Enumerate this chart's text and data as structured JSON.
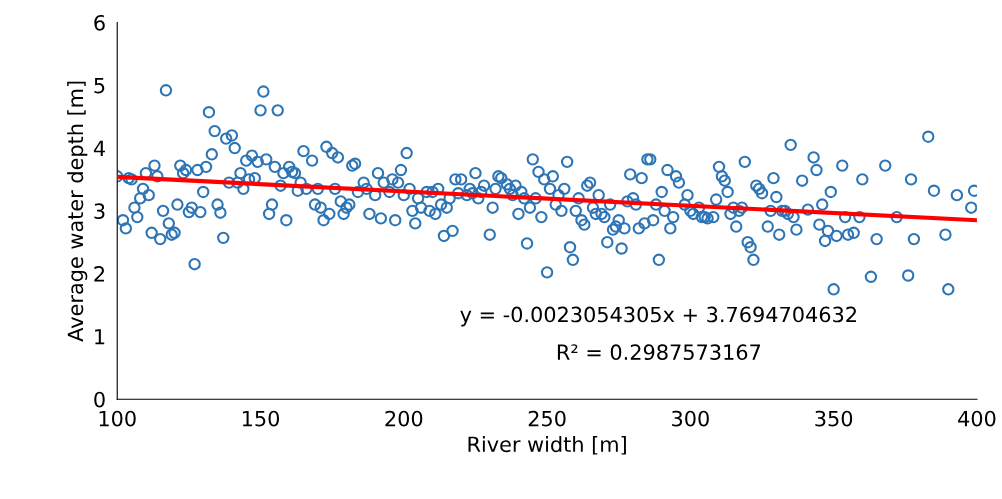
{
  "chart_data": {
    "type": "scatter",
    "xlabel": "River width [m]",
    "ylabel": "Average water depth [m]",
    "xlim": [
      100,
      400
    ],
    "ylim": [
      0,
      6
    ],
    "xticks": [
      100,
      150,
      200,
      250,
      300,
      350,
      400
    ],
    "yticks": [
      0,
      1,
      2,
      3,
      4,
      5,
      6
    ],
    "grid": false,
    "legend": false,
    "annotations": [
      "y = -0.0023054305x + 3.7694704632",
      "R² = 0.2987573167"
    ],
    "series": [
      {
        "marker": "circle",
        "color": "#2e75b6",
        "x": [
          100,
          102,
          103,
          104,
          105,
          106,
          107,
          108,
          109,
          110,
          111,
          112,
          113,
          114,
          115,
          116,
          117,
          118,
          119,
          120,
          121,
          122,
          123,
          124,
          125,
          126,
          127,
          128,
          129,
          130,
          131,
          132,
          133,
          134,
          135,
          136,
          137,
          138,
          139,
          140,
          141,
          142,
          143,
          144,
          145,
          146,
          147,
          148,
          149,
          150,
          151,
          152,
          153,
          154,
          155,
          156,
          157,
          158,
          159,
          160,
          161,
          162,
          163,
          164,
          165,
          166,
          168,
          169,
          170,
          171,
          172,
          173,
          174,
          175,
          176,
          177,
          178,
          179,
          180,
          181,
          182,
          183,
          184,
          186,
          187,
          188,
          190,
          191,
          192,
          193,
          195,
          196,
          197,
          198,
          199,
          200,
          201,
          202,
          203,
          204,
          205,
          206,
          208,
          209,
          210,
          211,
          212,
          213,
          214,
          215,
          216,
          217,
          218,
          219,
          220,
          222,
          223,
          224,
          225,
          226,
          227,
          228,
          230,
          231,
          232,
          233,
          234,
          236,
          237,
          238,
          239,
          240,
          241,
          242,
          243,
          244,
          245,
          246,
          247,
          248,
          249,
          250,
          251,
          252,
          253,
          254,
          255,
          256,
          257,
          258,
          259,
          260,
          261,
          262,
          263,
          264,
          265,
          266,
          267,
          268,
          269,
          270,
          271,
          272,
          273,
          274,
          275,
          276,
          277,
          278,
          279,
          280,
          281,
          282,
          283,
          284,
          285,
          286,
          287,
          288,
          289,
          290,
          291,
          292,
          293,
          294,
          295,
          296,
          298,
          299,
          300,
          301,
          303,
          304,
          305,
          306,
          308,
          309,
          310,
          311,
          312,
          313,
          314,
          315,
          316,
          317,
          318,
          319,
          320,
          321,
          322,
          323,
          324,
          325,
          327,
          328,
          329,
          330,
          331,
          332,
          333,
          334,
          335,
          336,
          337,
          339,
          341,
          343,
          344,
          345,
          346,
          347,
          348,
          349,
          350,
          351,
          353,
          354,
          355,
          357,
          359,
          360,
          363,
          365,
          368,
          372,
          376,
          377,
          378,
          383,
          385,
          389,
          390,
          393,
          398,
          399
        ],
        "values": [
          3.55,
          2.85,
          2.72,
          3.52,
          3.5,
          3.05,
          2.9,
          3.2,
          3.35,
          3.6,
          3.25,
          2.65,
          3.72,
          3.55,
          2.55,
          3.0,
          4.92,
          2.8,
          2.62,
          2.65,
          3.1,
          3.72,
          3.6,
          3.65,
          2.98,
          3.05,
          2.15,
          3.65,
          2.98,
          3.3,
          3.7,
          4.57,
          3.9,
          4.27,
          3.1,
          2.97,
          2.57,
          4.15,
          3.45,
          4.2,
          4.0,
          3.45,
          3.6,
          3.35,
          3.8,
          3.5,
          3.88,
          3.52,
          3.78,
          4.6,
          4.9,
          3.82,
          2.95,
          3.1,
          3.7,
          4.6,
          3.4,
          3.6,
          2.85,
          3.7,
          3.62,
          3.6,
          3.32,
          3.45,
          3.95,
          3.35,
          3.8,
          3.1,
          3.35,
          3.05,
          2.85,
          4.02,
          2.95,
          3.92,
          3.35,
          3.85,
          3.15,
          2.95,
          3.05,
          3.1,
          3.72,
          3.75,
          3.3,
          3.45,
          3.35,
          2.95,
          3.25,
          3.6,
          2.88,
          3.45,
          3.3,
          3.5,
          2.85,
          3.45,
          3.65,
          3.25,
          3.92,
          3.35,
          3.0,
          2.8,
          3.2,
          3.05,
          3.3,
          3.0,
          3.3,
          2.95,
          3.35,
          3.1,
          2.6,
          3.05,
          3.2,
          2.68,
          3.5,
          3.28,
          3.5,
          3.25,
          3.35,
          3.28,
          3.6,
          3.2,
          3.3,
          3.4,
          2.62,
          3.05,
          3.35,
          3.55,
          3.52,
          3.42,
          3.35,
          3.25,
          3.4,
          2.95,
          3.3,
          3.2,
          2.48,
          3.05,
          3.82,
          3.2,
          3.62,
          2.9,
          3.5,
          2.02,
          3.35,
          3.55,
          3.1,
          3.25,
          3.0,
          3.35,
          3.78,
          2.42,
          2.22,
          3.0,
          3.2,
          2.85,
          2.78,
          3.4,
          3.45,
          3.05,
          2.95,
          3.25,
          2.95,
          2.9,
          2.5,
          3.1,
          2.7,
          2.75,
          2.85,
          2.4,
          2.72,
          3.15,
          3.58,
          3.2,
          3.1,
          2.72,
          3.52,
          2.8,
          3.82,
          3.82,
          2.85,
          3.1,
          2.22,
          3.3,
          3.0,
          3.65,
          2.72,
          2.9,
          3.55,
          3.45,
          3.1,
          3.25,
          3.0,
          2.95,
          3.05,
          2.9,
          2.9,
          2.88,
          2.9,
          3.18,
          3.7,
          3.55,
          3.48,
          3.3,
          2.95,
          3.05,
          2.75,
          3.0,
          3.05,
          3.78,
          2.5,
          2.42,
          2.22,
          3.4,
          3.35,
          3.28,
          2.75,
          3.0,
          3.52,
          3.22,
          2.62,
          3.0,
          3.0,
          2.95,
          4.05,
          2.9,
          2.7,
          3.48,
          3.02,
          3.85,
          3.65,
          2.78,
          3.1,
          2.52,
          2.68,
          3.3,
          1.75,
          2.6,
          3.72,
          2.9,
          2.62,
          2.65,
          2.9,
          3.5,
          1.95,
          2.55,
          3.72,
          2.9,
          1.97,
          3.5,
          2.55,
          4.18,
          3.32,
          2.62,
          1.75,
          3.25,
          3.05,
          3.32
        ]
      },
      {
        "type": "line",
        "marker": "none",
        "color": "#ff0000",
        "x": [
          100,
          400
        ],
        "values": [
          3.54,
          2.85
        ]
      }
    ]
  }
}
